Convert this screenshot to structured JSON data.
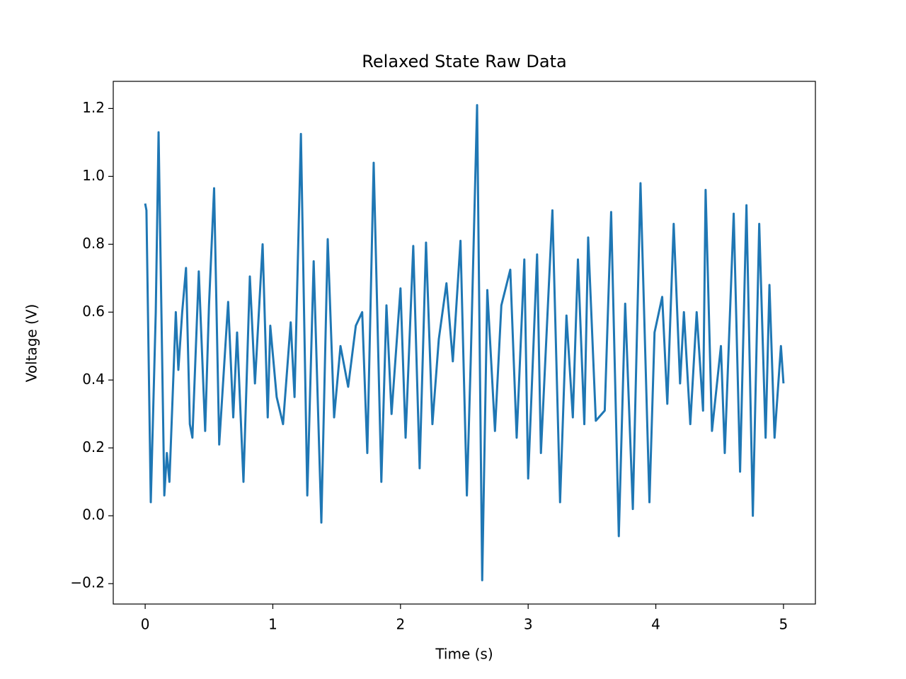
{
  "chart_data": {
    "type": "line",
    "title": "Relaxed State Raw Data",
    "xlabel": "Time (s)",
    "ylabel": "Voltage (V)",
    "xlim": [
      -0.25,
      5.25
    ],
    "ylim": [
      -0.26,
      1.28
    ],
    "xticks": [
      0,
      1,
      2,
      3,
      4,
      5
    ],
    "yticks": [
      {
        "value": -0.2,
        "label": "−0.2"
      },
      {
        "value": 0,
        "label": "0.0"
      },
      0.2,
      0.4,
      0.6,
      0.8,
      {
        "value": 1,
        "label": "1.0"
      },
      1.2
    ],
    "series": [
      {
        "name": "Voltage",
        "color": "#1f77b4",
        "x": [
          0,
          0.01,
          0.044,
          0.083,
          0.105,
          0.15,
          0.17,
          0.19,
          0.24,
          0.26,
          0.29,
          0.32,
          0.35,
          0.37,
          0.42,
          0.47,
          0.5,
          0.54,
          0.58,
          0.65,
          0.69,
          0.72,
          0.77,
          0.82,
          0.86,
          0.92,
          0.96,
          0.98,
          1.03,
          1.08,
          1.14,
          1.17,
          1.22,
          1.27,
          1.32,
          1.38,
          1.43,
          1.48,
          1.53,
          1.59,
          1.65,
          1.7,
          1.74,
          1.79,
          1.85,
          1.89,
          1.93,
          2.0,
          2.04,
          2.1,
          2.15,
          2.2,
          2.25,
          2.3,
          2.36,
          2.41,
          2.47,
          2.52,
          2.55,
          2.6,
          2.64,
          2.68,
          2.74,
          2.79,
          2.86,
          2.91,
          2.97,
          3.0,
          3.07,
          3.1,
          3.19,
          3.25,
          3.3,
          3.35,
          3.39,
          3.44,
          3.47,
          3.53,
          3.6,
          3.65,
          3.71,
          3.76,
          3.82,
          3.88,
          3.95,
          3.99,
          4.05,
          4.09,
          4.14,
          4.19,
          4.22,
          4.27,
          4.32,
          4.37,
          4.39,
          4.44,
          4.51,
          4.54,
          4.61,
          4.66,
          4.71,
          4.76,
          4.81,
          4.86,
          4.89,
          4.93,
          4.98,
          5.0
        ],
        "values": [
          0.92,
          0.9,
          0.04,
          0.6,
          1.13,
          0.06,
          0.185,
          0.1,
          0.6,
          0.43,
          0.6,
          0.73,
          0.27,
          0.23,
          0.72,
          0.25,
          0.62,
          0.965,
          0.21,
          0.63,
          0.29,
          0.54,
          0.1,
          0.705,
          0.39,
          0.8,
          0.29,
          0.56,
          0.35,
          0.27,
          0.57,
          0.35,
          1.125,
          0.06,
          0.75,
          -0.02,
          0.815,
          0.29,
          0.5,
          0.38,
          0.56,
          0.6,
          0.185,
          1.04,
          0.1,
          0.62,
          0.3,
          0.67,
          0.23,
          0.795,
          0.14,
          0.805,
          0.27,
          0.52,
          0.685,
          0.455,
          0.81,
          0.06,
          0.455,
          1.21,
          -0.19,
          0.665,
          0.25,
          0.62,
          0.725,
          0.23,
          0.755,
          0.11,
          0.77,
          0.185,
          0.9,
          0.04,
          0.59,
          0.29,
          0.755,
          0.27,
          0.82,
          0.28,
          0.31,
          0.895,
          -0.06,
          0.625,
          0.02,
          0.98,
          0.04,
          0.54,
          0.645,
          0.33,
          0.86,
          0.39,
          0.6,
          0.27,
          0.6,
          0.31,
          0.96,
          0.25,
          0.5,
          0.185,
          0.89,
          0.13,
          0.915,
          0,
          0.86,
          0.23,
          0.68,
          0.23,
          0.5,
          0.39
        ]
      }
    ]
  }
}
